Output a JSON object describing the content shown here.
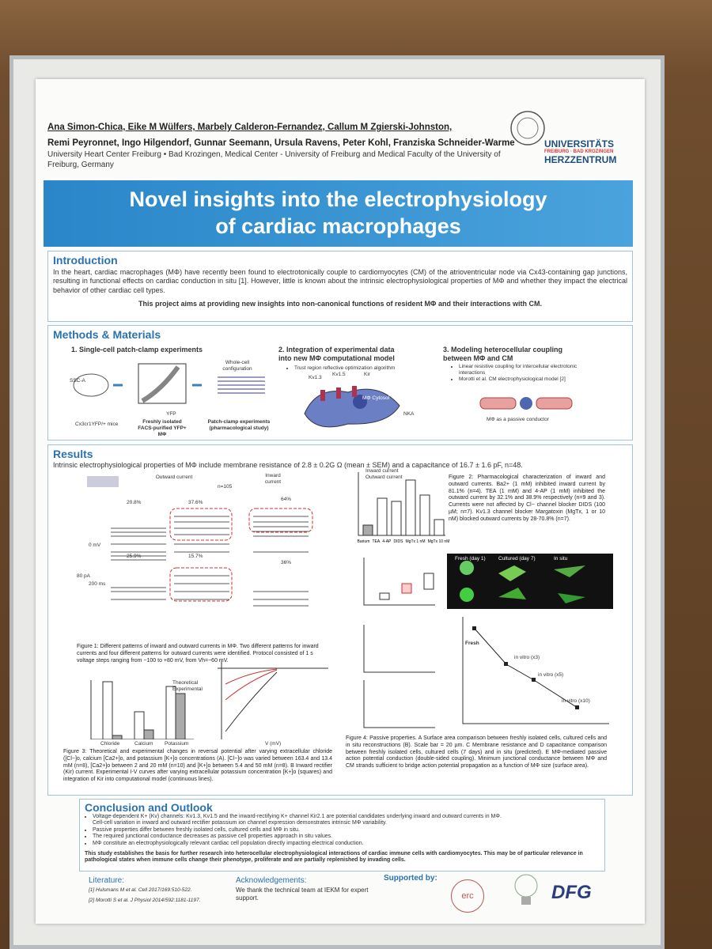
{
  "header": {
    "authors": [
      "Ana Simon-Chica, Eike M Wülfers, Marbely Calderon-Fernandez, Callum M Zgierski-Johnston,",
      "Remi Peyronnet, Ingo Hilgendorf, Gunnar Seemann, Ursula Ravens, Peter Kohl, Franziska Schneider-Warme"
    ],
    "affiliation": "University Heart Center Freiburg • Bad Krozingen, Medical Center - University of Freiburg and Medical Faculty of the University of Freiburg, Germany",
    "logo": {
      "line1": "UNIVERSITÄTS",
      "line2": "FREIBURG · BAD KROZINGEN",
      "line3": "HERZZENTRUM"
    }
  },
  "title": "Novel insights into the electrophysiology of cardiac macrophages",
  "introduction": {
    "heading": "Introduction",
    "body": "In the heart, cardiac macrophages (MΦ) have recently been found to electrotonically couple to cardiomyocytes (CM) of the atrioventricular node via Cx43-containing gap junctions, resulting in functional effects on cardiac conduction in situ [1]. However, little is known about the intrinsic electrophysiological properties of MΦ and whether they impact the electrical behavior of other cardiac cell types.",
    "aim": "This project aims at providing new insights into non-canonical functions of resident MΦ and their interactions with CM."
  },
  "methods": {
    "heading": "Methods & Materials",
    "steps": [
      {
        "title": "1. Single-cell patch-clamp experiments",
        "labels": [
          "Cx3cr1YFP/+ mice",
          "Freshly isolated FACS-purified YFP+ MΦ",
          "Whole-cell configuration",
          "Patch-clamp experiments (pharmacological study)",
          "SSC-A",
          "YFP"
        ]
      },
      {
        "title": "2. Integration of experimental data into new MΦ computational model",
        "bullets": [
          "Trust region reflective optimization algorithm"
        ],
        "labels": [
          "Kv1.3",
          "Kv1.5",
          "Kir",
          "MΦ Cytosol",
          "NKA"
        ]
      },
      {
        "title": "3. Modeling heterocellular coupling between MΦ and CM",
        "bullets": [
          "Linear resistive coupling for intercellular electrotonic interactions",
          "Morotti et al. CM electrophysiological model [2]"
        ],
        "labels": [
          "MΦ as a passive conductor"
        ]
      }
    ]
  },
  "results": {
    "heading": "Results",
    "summary": "Intrinsic electrophysiological properties of MΦ include membrane resistance of 2.8 ± 0.2G Ω (mean ± SEM) and a capacitance of 16.7 ± 1.6 pF, n=48.",
    "fig1": {
      "labels": [
        "Outward current",
        "Inward current",
        "n=105",
        "20.8%",
        "37.6%",
        "25.9%",
        "15.7%",
        "64%",
        "36%",
        "0 mV",
        "200 ms",
        "80 pA"
      ],
      "caption": "Figure 1: Different patterns of inward and outward currents in MΦ. Two different patterns for inward currents and four different patterns for outward currents were identified. Protocol consisted of 1 s voltage steps ranging from −100 to +80 mV, from Vh=−60 mV."
    },
    "fig2": {
      "legend": [
        "Inward current",
        "Outward current"
      ],
      "categories": [
        "Barium",
        "TEA",
        "4-AP",
        "DIDS",
        "MgTx 1 nM",
        "MgTx 10 nM"
      ],
      "caption": "Figure 2: Pharmacological characterization of inward and outward currents. Ba2+ (1 mM) inhibited inward current by 81.1% (n=4). TEA (1 mM) and 4-AP (1 mM) inhibited the outward current by 32.1% and 38.9% respectively (n=9 and 3). Currents were not affected by Cl− channel blocker DIDS (100 µM; n=7). Kv1.3 channel blocker Margatoxin (MgTx, 1 or 10 nM) blocked outward currents by 28-70.8% (n=7)."
    },
    "fig3": {
      "legend": [
        "Theoretical",
        "Experimental"
      ],
      "categories": [
        "Chloride",
        "Calcium",
        "Potassium"
      ],
      "xlabel": "V (mV)",
      "caption": "Figure 3: Theoretical and experimental changes in reversal potential after varying extracellular chloride ([Cl−]o, calcium [Ca2+]o, and potassium [K+]o concentrations (A). [Cl−]o was varied between 163.4 and 13.4 mM (n=8), [Ca2+]o between 2 and 20 mM (n=10) and [K+]o between 5.4 and 50 mM (n=8). B Inward rectifier (Kir) current. Experimental I-V curves after varying extracellular potassium concentration [K+]o (squares) and integration of Kir into computational model (continuous lines)."
    },
    "fig4": {
      "panels": [
        "Fresh (day 1)",
        "Cultured (day 7)",
        "In situ"
      ],
      "labels": [
        "Fresh",
        "in vitro (x3)",
        "in vitro (x5)",
        "in vitro (x10)"
      ],
      "caption": "Figure 4: Passive properties. A Surface area comparison between freshly isolated cells, cultured cells and in situ reconstructions (B). Scale bar = 20 µm. C Membrane resistance and D capacitance comparison between freshly isolated cells, cultured cells (7 days) and in situ (predicted). E MΦ-mediated passive action potential conduction (double-sided coupling). Minimum junctional conductance between MΦ and CM strands sufficient to bridge action potential propagation as a function of MΦ size (surface area)."
    }
  },
  "conclusion": {
    "heading": "Conclusion and Outlook",
    "bullets": [
      "Voltage-dependent K+ (Kv) channels: Kv1.3, Kv1.5 and the inward-rectifying K+ channel Kir2.1 are potential candidates underlying inward and outward currents in MΦ.",
      "Cell-cell variation in inward and outward rectifier potassium ion channel expression demonstrates intrinsic MΦ variability.",
      "Passive properties differ between freshly isolated cells, cultured cells and MΦ in situ.",
      "The required junctional conductance decreases as passive cell properties approach in situ values.",
      "MΦ constitute an electrophysiologically relevant cardiac cell population directly impacting electrical conduction."
    ],
    "closing": "This study establishes the basis for further research into heterocellular electrophysiological interactions of cardiac immune cells with cardiomyocytes. This may be of particular relevance in pathological states when immune cells change their phenotype, proliferate and are partially replenished by invading cells."
  },
  "footer": {
    "literature": {
      "heading": "Literature:",
      "refs": [
        "[1] Hulsmans M et al. Cell 2017/169:510-522.",
        "[2] Morotti S et al. J Physiol 2014/592:1181-1197."
      ]
    },
    "acknowledgements": {
      "heading": "Acknowledgements:",
      "text": "We thank the technical team at IEKM for expert support."
    },
    "supported": {
      "heading": "Supported by:",
      "logos": [
        "erc",
        "DFG"
      ]
    }
  }
}
